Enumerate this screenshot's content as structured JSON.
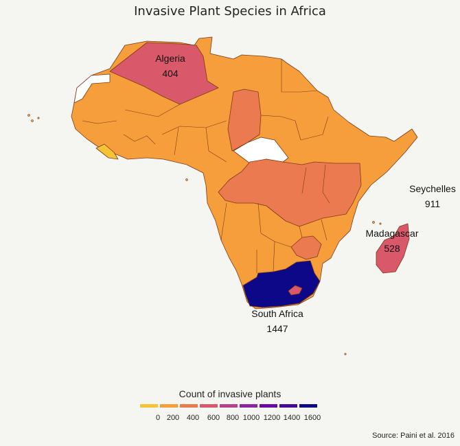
{
  "title": "Invasive Plant Species in Africa",
  "labels": {
    "algeria": {
      "name": "Algeria",
      "value": "404"
    },
    "seychelles": {
      "name": "Seychelles",
      "value": "911"
    },
    "madagascar": {
      "name": "Madagascar",
      "value": "528"
    },
    "south_africa": {
      "name": "South Africa",
      "value": "1447"
    }
  },
  "legend": {
    "title": "Count of invasive plants",
    "colors": [
      "#f6c338",
      "#f69e3c",
      "#ec7a50",
      "#d9596b",
      "#b8408a",
      "#8d25a2",
      "#6a0aa6",
      "#45099b",
      "#0d0887"
    ],
    "ticks": [
      "0",
      "200",
      "400",
      "600",
      "800",
      "1000",
      "1200",
      "1400",
      "1600"
    ]
  },
  "source": "Source: Paini et al. 2016",
  "colors": {
    "low": "#f6c338",
    "base": "#f69e3c",
    "mid": "#ec7a50",
    "high": "#d9596b",
    "max": "#0d0887",
    "border": "#7a3a16",
    "no_data": "#ffffff"
  }
}
